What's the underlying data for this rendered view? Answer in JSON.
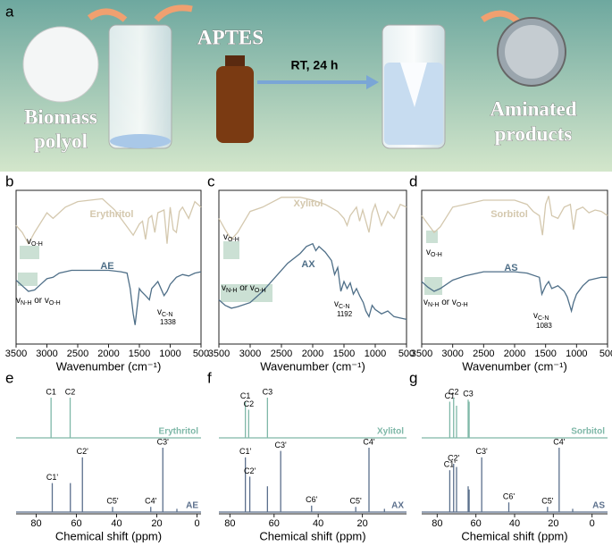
{
  "scheme": {
    "label": "a",
    "start": [
      "Biomass",
      "polyol"
    ],
    "reagent": "APTES",
    "condition": "RT, 24 h",
    "end": [
      "Aminated",
      "products"
    ]
  },
  "chart_data": [
    {
      "type": "line",
      "panel": "b",
      "xlabel": "Wavenumber (cm⁻¹)",
      "xlim": [
        3500,
        500
      ],
      "xticks": [
        3500,
        3000,
        2500,
        2000,
        1500,
        1000,
        500
      ],
      "ylim": [
        0,
        100
      ],
      "series": [
        {
          "name": "Erythritol",
          "color": "#d4c8ae",
          "x": [
            3500,
            3400,
            3300,
            3200,
            3000,
            2900,
            2700,
            2500,
            2300,
            2100,
            2000,
            1900,
            1800,
            1700,
            1600,
            1500,
            1450,
            1400,
            1350,
            1300,
            1250,
            1200,
            1100,
            1050,
            1000,
            950,
            900,
            850,
            800,
            700,
            600,
            500
          ],
          "values": [
            75,
            70,
            62,
            70,
            84,
            80,
            88,
            92,
            93,
            94,
            90,
            86,
            80,
            74,
            68,
            76,
            78,
            65,
            80,
            82,
            70,
            84,
            86,
            62,
            88,
            72,
            70,
            85,
            88,
            80,
            92,
            88
          ]
        },
        {
          "name": "AE",
          "color": "#4f6f88",
          "x": [
            3500,
            3400,
            3300,
            3200,
            3100,
            3000,
            2900,
            2800,
            2600,
            2400,
            2200,
            2000,
            1800,
            1700,
            1650,
            1600,
            1570,
            1540,
            1500,
            1470,
            1400,
            1338,
            1300,
            1200,
            1100,
            1050,
            1000,
            900,
            800,
            700,
            600,
            500
          ],
          "values": [
            36,
            32,
            28,
            29,
            33,
            37,
            38,
            41,
            43,
            43,
            43,
            43,
            42,
            41,
            30,
            12,
            4,
            15,
            30,
            28,
            25,
            22,
            30,
            35,
            25,
            28,
            33,
            38,
            40,
            39,
            41,
            42
          ]
        }
      ],
      "annotations": [
        {
          "segments": [
            {
              "text": "v"
            },
            {
              "sub": "O-H"
            }
          ]
        },
        {
          "segments": [
            {
              "text": "v"
            },
            {
              "sub": "N-H"
            },
            {
              "text": " or v"
            },
            {
              "sub": "O-H"
            }
          ]
        },
        {
          "segments": [
            {
              "text": "v"
            },
            {
              "sub": "C-N"
            }
          ],
          "note": 1338
        }
      ]
    },
    {
      "type": "line",
      "panel": "c",
      "xlabel": "Wavenumber (cm⁻¹)",
      "xlim": [
        3500,
        500
      ],
      "xticks": [
        3500,
        3000,
        2500,
        2000,
        1500,
        1000,
        500
      ],
      "ylim": [
        0,
        100
      ],
      "series": [
        {
          "name": "Xylitol",
          "color": "#d4c8ae",
          "x": [
            3500,
            3400,
            3300,
            3200,
            3000,
            2800,
            2500,
            2200,
            2000,
            1800,
            1600,
            1500,
            1450,
            1400,
            1300,
            1250,
            1200,
            1100,
            1050,
            1000,
            900,
            800,
            700,
            600,
            500
          ],
          "values": [
            80,
            72,
            65,
            70,
            85,
            88,
            95,
            95,
            93,
            90,
            85,
            80,
            75,
            82,
            88,
            78,
            86,
            70,
            84,
            90,
            75,
            85,
            80,
            90,
            88
          ]
        },
        {
          "name": "AX",
          "color": "#4f6f88",
          "x": [
            3500,
            3400,
            3300,
            3200,
            3000,
            2800,
            2600,
            2400,
            2200,
            2100,
            2000,
            1950,
            1900,
            1800,
            1700,
            1650,
            1600,
            1550,
            1500,
            1450,
            1400,
            1350,
            1300,
            1250,
            1192,
            1150,
            1100,
            1050,
            1000,
            900,
            800,
            700,
            600,
            500
          ],
          "values": [
            22,
            18,
            16,
            17,
            20,
            28,
            38,
            48,
            55,
            60,
            62,
            57,
            60,
            56,
            50,
            40,
            45,
            28,
            35,
            30,
            34,
            26,
            30,
            25,
            20,
            14,
            10,
            18,
            15,
            12,
            14,
            10,
            9,
            8
          ]
        }
      ],
      "annotations": [
        {
          "segments": [
            {
              "text": "v"
            },
            {
              "sub": "O-H"
            }
          ]
        },
        {
          "segments": [
            {
              "text": "v"
            },
            {
              "sub": "N-H"
            },
            {
              "text": " or v"
            },
            {
              "sub": "O-H"
            }
          ]
        },
        {
          "segments": [
            {
              "text": "v"
            },
            {
              "sub": "C-N"
            }
          ],
          "note": 1192
        }
      ]
    },
    {
      "type": "line",
      "panel": "d",
      "xlabel": "Wavenumber (cm⁻¹)",
      "xlim": [
        3500,
        500
      ],
      "xticks": [
        3500,
        3000,
        2500,
        2000,
        1500,
        1000,
        500
      ],
      "ylim": [
        0,
        100
      ],
      "series": [
        {
          "name": "Sorbitol",
          "color": "#d4c8ae",
          "x": [
            3500,
            3400,
            3300,
            3200,
            3000,
            2800,
            2500,
            2200,
            2000,
            1800,
            1700,
            1600,
            1550,
            1500,
            1450,
            1400,
            1300,
            1200,
            1100,
            1050,
            1000,
            900,
            800,
            700,
            600,
            500
          ],
          "values": [
            82,
            76,
            70,
            74,
            88,
            90,
            93,
            93,
            93,
            90,
            85,
            82,
            68,
            90,
            96,
            82,
            80,
            88,
            90,
            72,
            86,
            88,
            84,
            86,
            85,
            82
          ]
        },
        {
          "name": "AS",
          "color": "#4f6f88",
          "x": [
            3500,
            3400,
            3300,
            3200,
            3000,
            2800,
            2500,
            2000,
            1800,
            1600,
            1560,
            1500,
            1450,
            1400,
            1300,
            1200,
            1150,
            1083,
            1050,
            1000,
            900,
            800,
            700,
            600,
            500
          ],
          "values": [
            35,
            31,
            28,
            30,
            36,
            39,
            42,
            42,
            41,
            38,
            26,
            32,
            35,
            30,
            32,
            28,
            24,
            14,
            20,
            26,
            32,
            36,
            37,
            38,
            38
          ]
        }
      ],
      "annotations": [
        {
          "segments": [
            {
              "text": "v"
            },
            {
              "sub": "O-H"
            }
          ]
        },
        {
          "segments": [
            {
              "text": "v"
            },
            {
              "sub": "N-H"
            },
            {
              "text": " or v"
            },
            {
              "sub": "O-H"
            }
          ]
        },
        {
          "segments": [
            {
              "text": "v"
            },
            {
              "sub": "C-N"
            }
          ],
          "note": 1083
        }
      ]
    },
    {
      "type": "stem",
      "panel": "e",
      "xlabel": "Chemical shift (ppm)",
      "xlim": [
        90,
        -2
      ],
      "xticks": [
        80,
        60,
        40,
        20,
        0
      ],
      "ylim": [
        0,
        100
      ],
      "series": [
        {
          "name": "Erythritol",
          "color": "#7fb8a8",
          "x": [
            72.6,
            63.1
          ],
          "values": [
            100,
            100
          ],
          "labels": [
            "C1",
            "C2"
          ]
        },
        {
          "name": "AE",
          "color": "#5b6f8c",
          "x": [
            72,
            63,
            57,
            42,
            23,
            17,
            10
          ],
          "values": [
            45,
            45,
            85,
            8,
            8,
            100,
            5
          ],
          "labels": [
            "C1'",
            null,
            "C2'",
            "C5'",
            "C4'",
            "C3'",
            null
          ]
        }
      ]
    },
    {
      "type": "stem",
      "panel": "f",
      "xlabel": "Chemical shift (ppm)",
      "xlim": [
        85,
        0
      ],
      "xticks": [
        80,
        60,
        40,
        20
      ],
      "ylim": [
        0,
        100
      ],
      "series": [
        {
          "name": "Xylitol",
          "color": "#7fb8a8",
          "x": [
            73,
            71.5,
            63
          ],
          "values": [
            90,
            70,
            100
          ],
          "labels": [
            "C1",
            "C2",
            "C3"
          ]
        },
        {
          "name": "AX",
          "color": "#5b6f8c",
          "x": [
            73,
            71,
            63,
            57,
            43,
            23,
            17,
            10
          ],
          "values": [
            85,
            55,
            40,
            95,
            10,
            8,
            100,
            5
          ],
          "labels": [
            "C1'",
            "C2'",
            null,
            "C3'",
            "C6'",
            "C5'",
            "C4'",
            null
          ]
        }
      ]
    },
    {
      "type": "stem",
      "panel": "g",
      "xlabel": "Chemical shift (ppm)",
      "xlim": [
        88,
        -8
      ],
      "xticks": [
        80,
        60,
        40,
        20,
        0
      ],
      "ylim": [
        0,
        100
      ],
      "series": [
        {
          "name": "Sorbitol",
          "color": "#7fb8a8",
          "x": [
            73.5,
            71.5,
            70,
            64,
            63.5
          ],
          "values": [
            90,
            100,
            80,
            95,
            90
          ],
          "labels": [
            "C1",
            "C2",
            null,
            "C3",
            null
          ]
        },
        {
          "name": "AS",
          "color": "#5b6f8c",
          "x": [
            73.5,
            71.5,
            70,
            64,
            63.5,
            57,
            43,
            23,
            17,
            10
          ],
          "values": [
            65,
            75,
            70,
            40,
            35,
            85,
            15,
            8,
            100,
            5
          ],
          "labels": [
            "C1'",
            "C2'",
            null,
            null,
            null,
            "C3'",
            "C6'",
            "C5'",
            "C4'",
            null
          ]
        }
      ]
    }
  ]
}
